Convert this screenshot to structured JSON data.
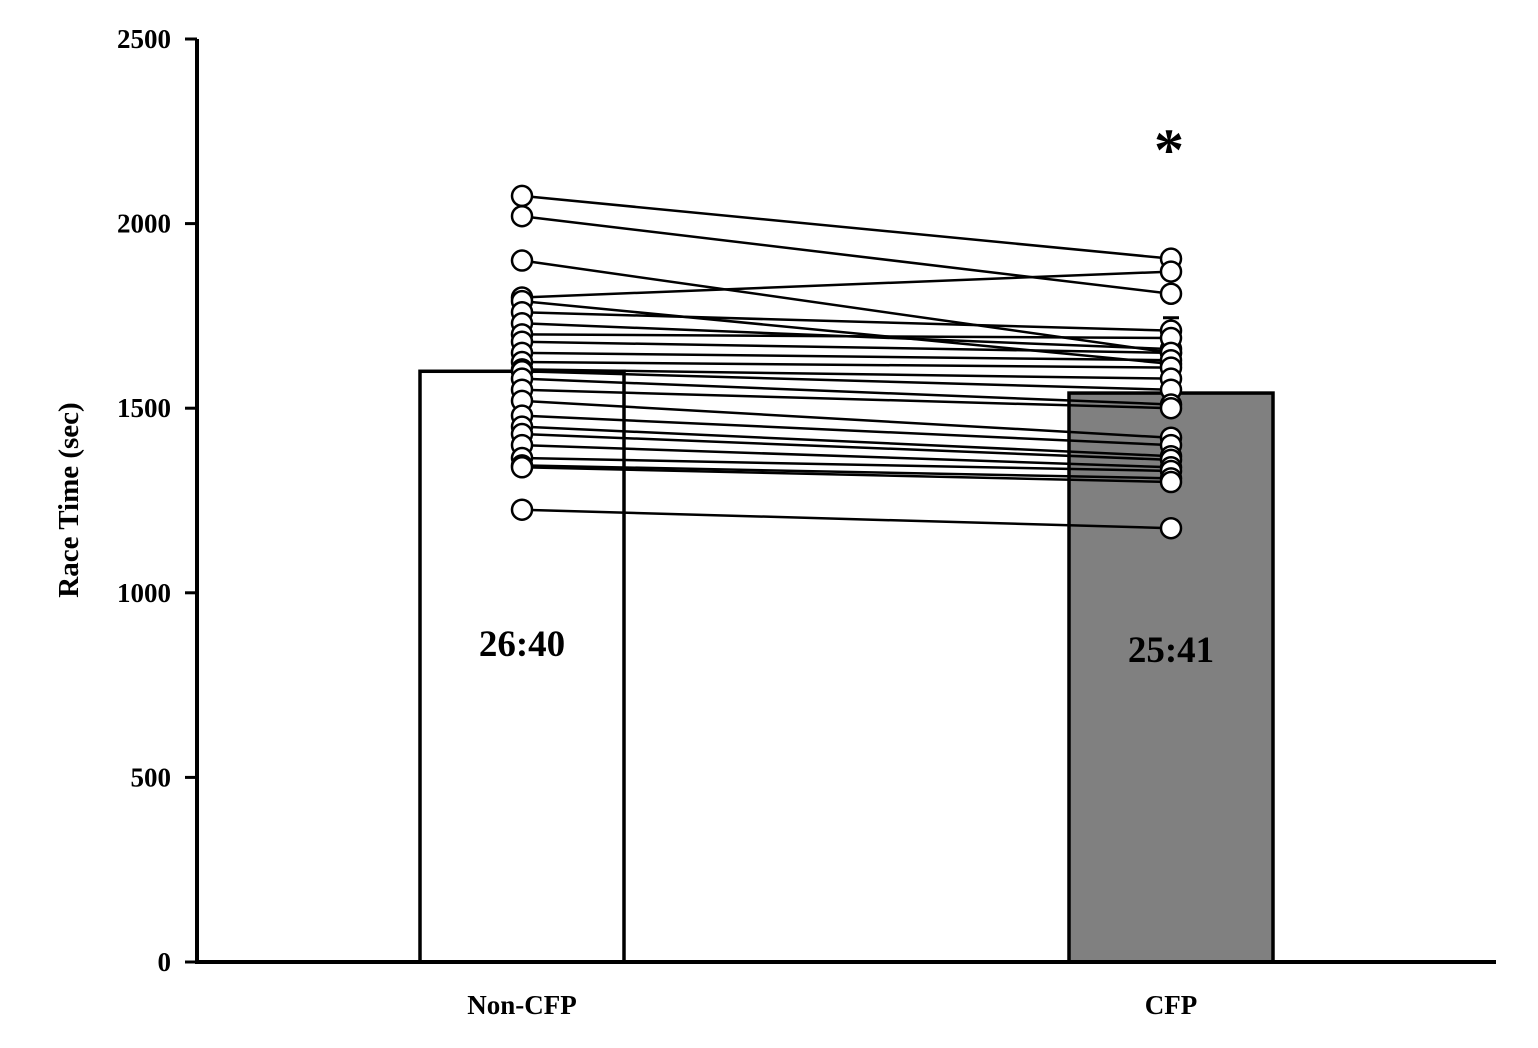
{
  "chart_data": {
    "type": "bar",
    "title": "",
    "xlabel": "",
    "ylabel": "Race Time  (sec)",
    "ylim": [
      0,
      2500
    ],
    "yticks": [
      0,
      500,
      1000,
      1500,
      2000,
      2500
    ],
    "grid": false,
    "categories": [
      "Non-CFP",
      "CFP"
    ],
    "values": [
      1600,
      1541
    ],
    "bar_labels": [
      "26:40",
      "25:41"
    ],
    "bar_colors": [
      "#ffffff",
      "#808080"
    ],
    "significance": {
      "category": "CFP",
      "symbol": "*"
    },
    "error_bar_top": {
      "category": "CFP",
      "value": 1745
    },
    "paired_points": [
      [
        2075,
        1905
      ],
      [
        2020,
        1810
      ],
      [
        1900,
        1650
      ],
      [
        1800,
        1870
      ],
      [
        1790,
        1620
      ],
      [
        1760,
        1710
      ],
      [
        1730,
        1660
      ],
      [
        1700,
        1690
      ],
      [
        1680,
        1650
      ],
      [
        1650,
        1630
      ],
      [
        1625,
        1610
      ],
      [
        1605,
        1580
      ],
      [
        1600,
        1550
      ],
      [
        1580,
        1510
      ],
      [
        1550,
        1500
      ],
      [
        1520,
        1420
      ],
      [
        1480,
        1400
      ],
      [
        1450,
        1370
      ],
      [
        1430,
        1360
      ],
      [
        1400,
        1340
      ],
      [
        1365,
        1330
      ],
      [
        1345,
        1310
      ],
      [
        1340,
        1300
      ],
      [
        1225,
        1175
      ]
    ]
  }
}
